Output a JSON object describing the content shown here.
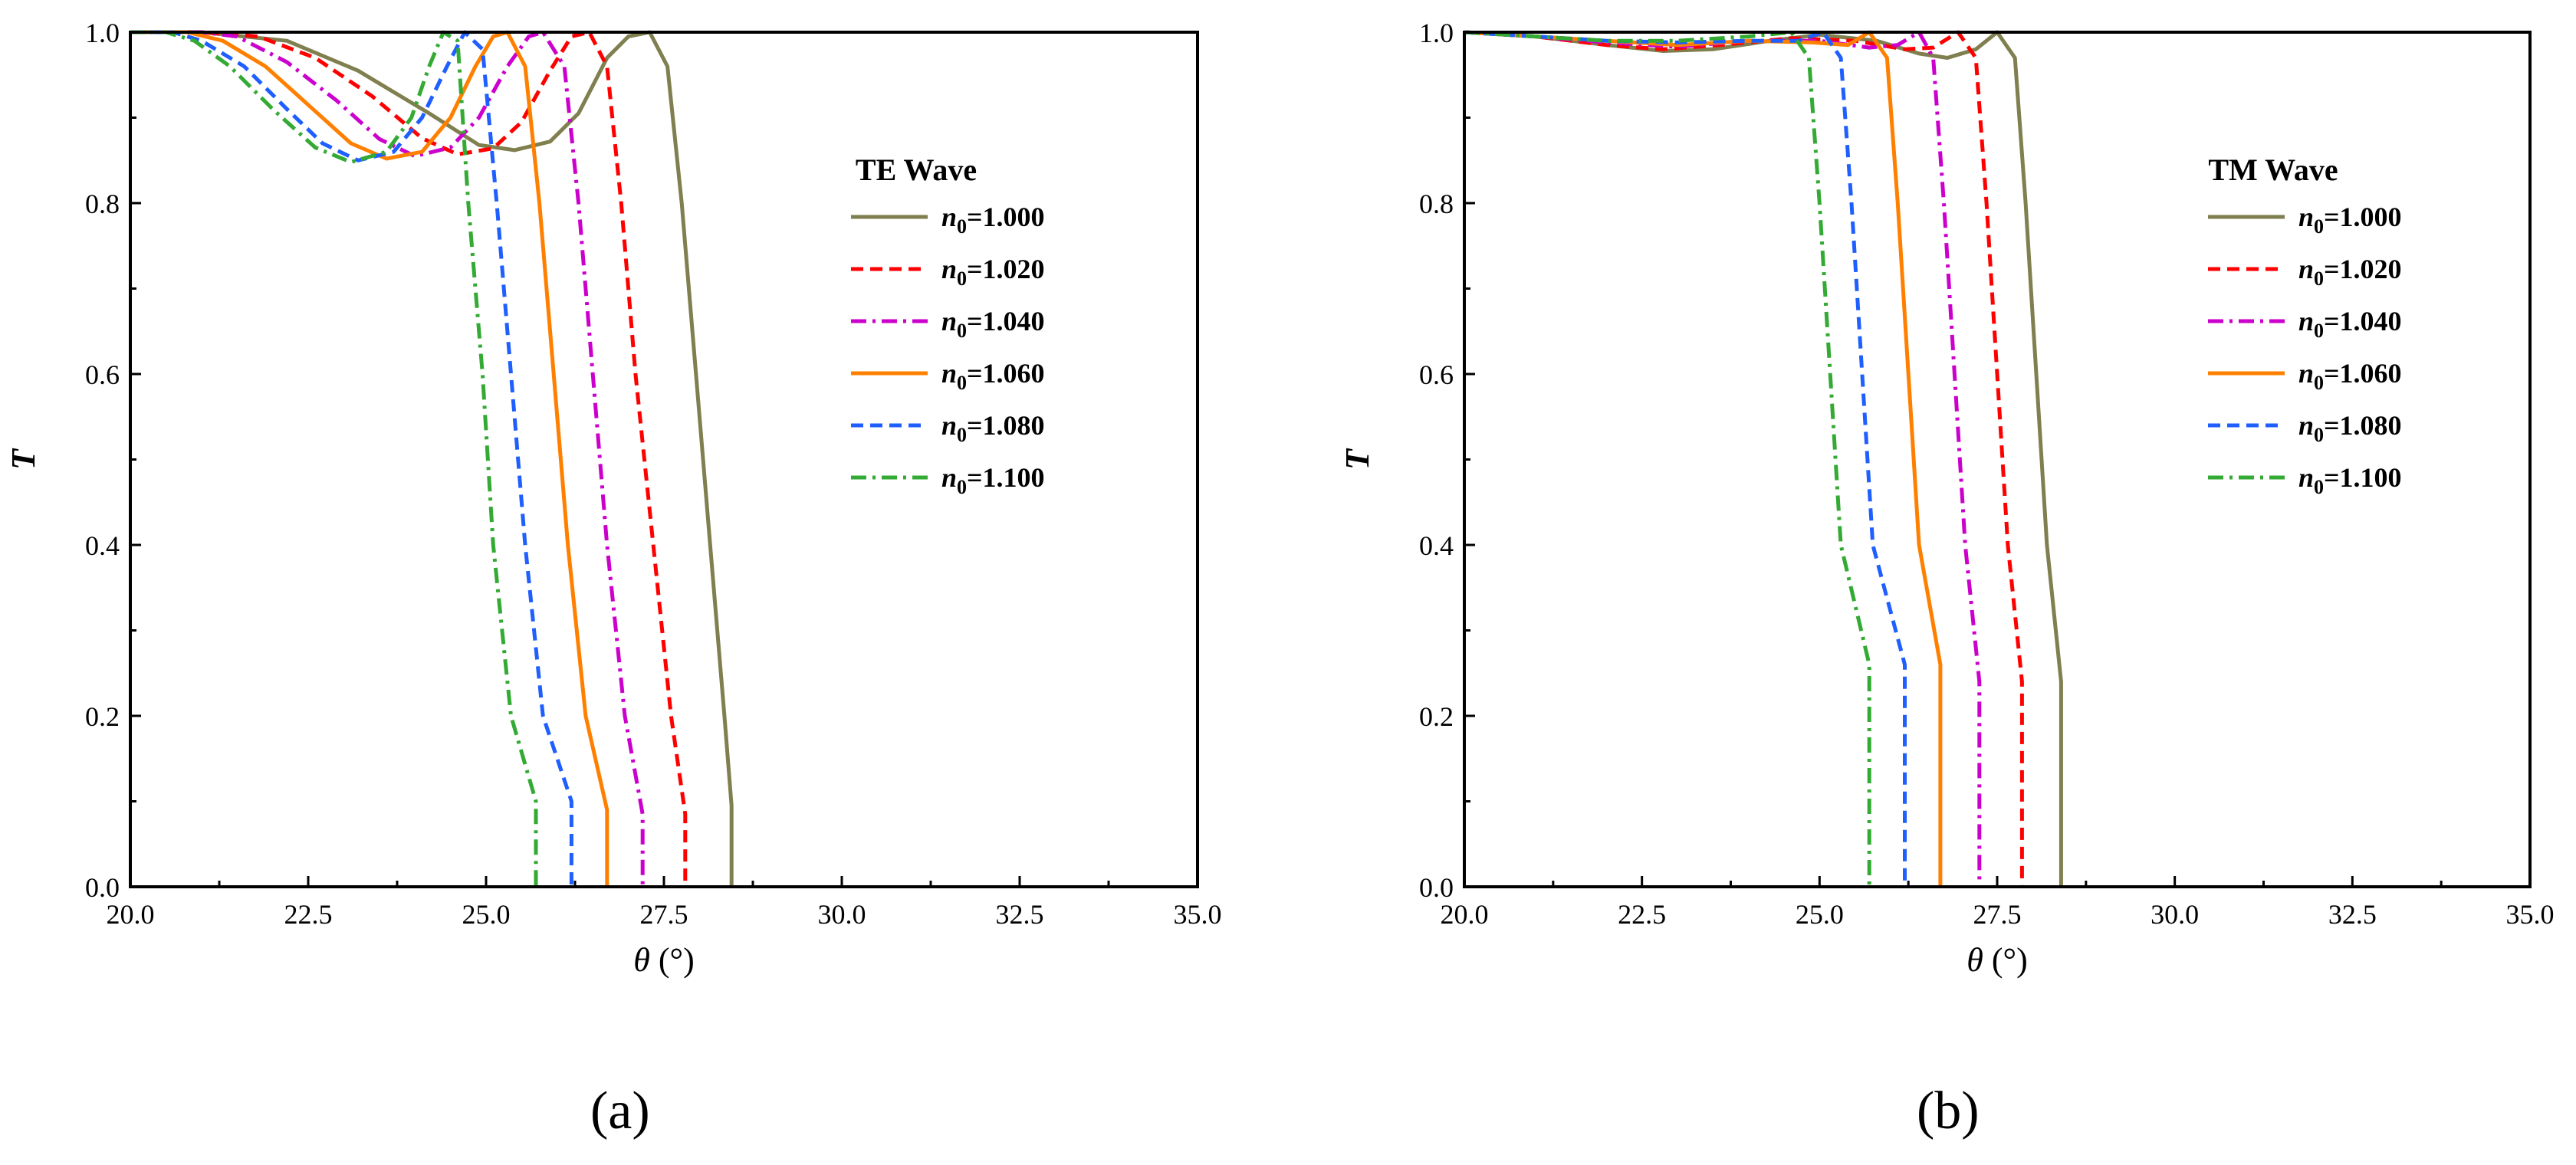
{
  "chart_data": [
    {
      "type": "line",
      "panel_label": "(a)",
      "legend_title": "TE Wave",
      "legend_position": "right",
      "xlabel_symbol": "θ",
      "xlabel_unit": "(°)",
      "ylabel": "T",
      "xlim": [
        20.0,
        35.0
      ],
      "ylim": [
        0.0,
        1.0
      ],
      "xticks": [
        "20.0",
        "22.5",
        "25.0",
        "27.5",
        "30.0",
        "32.5",
        "35.0"
      ],
      "yticks": [
        "0.0",
        "0.2",
        "0.4",
        "0.6",
        "0.8",
        "1.0"
      ],
      "grid": false,
      "series": [
        {
          "name": "n0=1.000",
          "label_base": "n",
          "label_sub": "0",
          "label_rest": "=1.000",
          "color": "#7f7f4f",
          "dash": "solid",
          "points": [
            [
              20,
              1
            ],
            [
              21,
              1
            ],
            [
              22.2,
              0.99
            ],
            [
              23.2,
              0.955
            ],
            [
              24.2,
              0.905
            ],
            [
              24.9,
              0.868
            ],
            [
              25.4,
              0.862
            ],
            [
              25.9,
              0.872
            ],
            [
              26.3,
              0.905
            ],
            [
              26.7,
              0.97
            ],
            [
              27.0,
              0.995
            ],
            [
              27.3,
              1.0
            ],
            [
              27.55,
              0.96
            ],
            [
              27.75,
              0.8
            ],
            [
              27.95,
              0.6
            ],
            [
              28.15,
              0.4
            ],
            [
              28.35,
              0.2
            ],
            [
              28.45,
              0.095
            ],
            [
              28.45,
              0
            ]
          ]
        },
        {
          "name": "n0=1.020",
          "label_base": "n",
          "label_sub": "0",
          "label_rest": "=1.020",
          "color": "#ff0000",
          "dash": "dashed",
          "points": [
            [
              20,
              1
            ],
            [
              21,
              1
            ],
            [
              21.8,
              0.995
            ],
            [
              22.6,
              0.97
            ],
            [
              23.4,
              0.925
            ],
            [
              24.1,
              0.876
            ],
            [
              24.6,
              0.857
            ],
            [
              25.1,
              0.864
            ],
            [
              25.5,
              0.895
            ],
            [
              25.9,
              0.955
            ],
            [
              26.2,
              0.995
            ],
            [
              26.45,
              1.0
            ],
            [
              26.7,
              0.96
            ],
            [
              26.9,
              0.8
            ],
            [
              27.1,
              0.6
            ],
            [
              27.35,
              0.4
            ],
            [
              27.6,
              0.2
            ],
            [
              27.8,
              0.085
            ],
            [
              27.8,
              0
            ]
          ]
        },
        {
          "name": "n0=1.040",
          "label_base": "n",
          "label_sub": "0",
          "label_rest": "=1.040",
          "color": "#cc00cc",
          "dash": "dashdot",
          "points": [
            [
              20,
              1
            ],
            [
              21,
              1
            ],
            [
              21.5,
              0.995
            ],
            [
              22.2,
              0.965
            ],
            [
              22.9,
              0.92
            ],
            [
              23.5,
              0.875
            ],
            [
              24.0,
              0.855
            ],
            [
              24.5,
              0.865
            ],
            [
              24.9,
              0.9
            ],
            [
              25.3,
              0.96
            ],
            [
              25.6,
              0.995
            ],
            [
              25.8,
              1.0
            ],
            [
              26.1,
              0.96
            ],
            [
              26.3,
              0.8
            ],
            [
              26.5,
              0.6
            ],
            [
              26.7,
              0.4
            ],
            [
              26.95,
              0.2
            ],
            [
              27.2,
              0.085
            ],
            [
              27.2,
              0
            ]
          ]
        },
        {
          "name": "n0=1.060",
          "label_base": "n",
          "label_sub": "0",
          "label_rest": "=1.060",
          "color": "#ff8000",
          "dash": "solid",
          "points": [
            [
              20,
              1
            ],
            [
              20.8,
              1
            ],
            [
              21.3,
              0.99
            ],
            [
              21.9,
              0.96
            ],
            [
              22.5,
              0.915
            ],
            [
              23.1,
              0.87
            ],
            [
              23.6,
              0.852
            ],
            [
              24.1,
              0.86
            ],
            [
              24.5,
              0.9
            ],
            [
              24.85,
              0.96
            ],
            [
              25.1,
              0.995
            ],
            [
              25.3,
              1.0
            ],
            [
              25.55,
              0.96
            ],
            [
              25.75,
              0.8
            ],
            [
              25.95,
              0.6
            ],
            [
              26.15,
              0.4
            ],
            [
              26.4,
              0.2
            ],
            [
              26.7,
              0.09
            ],
            [
              26.7,
              0
            ]
          ]
        },
        {
          "name": "n0=1.080",
          "label_base": "n",
          "label_sub": "0",
          "label_rest": "=1.080",
          "color": "#1f5fff",
          "dash": "dashed",
          "points": [
            [
              20,
              1
            ],
            [
              20.6,
              1
            ],
            [
              21.0,
              0.99
            ],
            [
              21.6,
              0.96
            ],
            [
              22.2,
              0.91
            ],
            [
              22.7,
              0.87
            ],
            [
              23.2,
              0.85
            ],
            [
              23.7,
              0.86
            ],
            [
              24.1,
              0.9
            ],
            [
              24.45,
              0.96
            ],
            [
              24.7,
              1.0
            ],
            [
              24.95,
              0.98
            ],
            [
              25.15,
              0.8
            ],
            [
              25.35,
              0.6
            ],
            [
              25.55,
              0.4
            ],
            [
              25.8,
              0.2
            ],
            [
              26.2,
              0.1
            ],
            [
              26.2,
              0
            ]
          ]
        },
        {
          "name": "n0=1.100",
          "label_base": "n",
          "label_sub": "0",
          "label_rest": "=1.100",
          "color": "#33aa33",
          "dash": "dashdot",
          "points": [
            [
              20,
              1
            ],
            [
              20.5,
              1
            ],
            [
              20.9,
              0.99
            ],
            [
              21.4,
              0.96
            ],
            [
              22.0,
              0.91
            ],
            [
              22.6,
              0.865
            ],
            [
              23.1,
              0.848
            ],
            [
              23.6,
              0.86
            ],
            [
              23.95,
              0.9
            ],
            [
              24.2,
              0.96
            ],
            [
              24.4,
              1.0
            ],
            [
              24.6,
              0.99
            ],
            [
              24.75,
              0.8
            ],
            [
              24.95,
              0.6
            ],
            [
              25.1,
              0.4
            ],
            [
              25.35,
              0.2
            ],
            [
              25.7,
              0.1
            ],
            [
              25.7,
              0
            ]
          ]
        }
      ]
    },
    {
      "type": "line",
      "panel_label": "(b)",
      "legend_title": "TM Wave",
      "legend_position": "right",
      "xlabel_symbol": "θ",
      "xlabel_unit": "(°)",
      "ylabel": "T",
      "xlim": [
        20.0,
        35.0
      ],
      "ylim": [
        0.0,
        1.0
      ],
      "xticks": [
        "20.0",
        "22.5",
        "25.0",
        "27.5",
        "30.0",
        "32.5",
        "35.0"
      ],
      "yticks": [
        "0.0",
        "0.2",
        "0.4",
        "0.6",
        "0.8",
        "1.0"
      ],
      "grid": false,
      "series": [
        {
          "name": "n0=1.000",
          "label_base": "n",
          "label_sub": "0",
          "label_rest": "=1.000",
          "color": "#7f7f4f",
          "dash": "solid",
          "points": [
            [
              20,
              1
            ],
            [
              21,
              0.995
            ],
            [
              22,
              0.985
            ],
            [
              22.8,
              0.978
            ],
            [
              23.5,
              0.98
            ],
            [
              24.3,
              0.99
            ],
            [
              25,
              0.997
            ],
            [
              25.8,
              0.99
            ],
            [
              26.4,
              0.975
            ],
            [
              26.8,
              0.97
            ],
            [
              27.2,
              0.98
            ],
            [
              27.5,
              1.0
            ],
            [
              27.75,
              0.97
            ],
            [
              27.9,
              0.8
            ],
            [
              28.05,
              0.6
            ],
            [
              28.2,
              0.4
            ],
            [
              28.4,
              0.24
            ],
            [
              28.4,
              0
            ]
          ]
        },
        {
          "name": "n0=1.020",
          "label_base": "n",
          "label_sub": "0",
          "label_rest": "=1.020",
          "color": "#ff0000",
          "dash": "dashed",
          "points": [
            [
              20,
              1
            ],
            [
              21,
              0.995
            ],
            [
              22,
              0.985
            ],
            [
              22.8,
              0.98
            ],
            [
              23.6,
              0.985
            ],
            [
              24.6,
              0.993
            ],
            [
              25.5,
              0.99
            ],
            [
              26.2,
              0.98
            ],
            [
              26.6,
              0.982
            ],
            [
              26.95,
              1.0
            ],
            [
              27.2,
              0.97
            ],
            [
              27.35,
              0.8
            ],
            [
              27.5,
              0.6
            ],
            [
              27.65,
              0.4
            ],
            [
              27.85,
              0.24
            ],
            [
              27.85,
              0
            ]
          ]
        },
        {
          "name": "n0=1.040",
          "label_base": "n",
          "label_sub": "0",
          "label_rest": "=1.040",
          "color": "#cc00cc",
          "dash": "dashdot",
          "points": [
            [
              20,
              1
            ],
            [
              21,
              0.995
            ],
            [
              22,
              0.988
            ],
            [
              23,
              0.983
            ],
            [
              24,
              0.99
            ],
            [
              25,
              0.99
            ],
            [
              25.7,
              0.982
            ],
            [
              26.1,
              0.985
            ],
            [
              26.4,
              1.0
            ],
            [
              26.6,
              0.97
            ],
            [
              26.75,
              0.8
            ],
            [
              26.9,
              0.6
            ],
            [
              27.05,
              0.4
            ],
            [
              27.25,
              0.24
            ],
            [
              27.25,
              0
            ]
          ]
        },
        {
          "name": "n0=1.060",
          "label_base": "n",
          "label_sub": "0",
          "label_rest": "=1.060",
          "color": "#ff8000",
          "dash": "solid",
          "points": [
            [
              20,
              1
            ],
            [
              21,
              0.995
            ],
            [
              22,
              0.99
            ],
            [
              23,
              0.985
            ],
            [
              24,
              0.99
            ],
            [
              24.9,
              0.988
            ],
            [
              25.4,
              0.985
            ],
            [
              25.7,
              1.0
            ],
            [
              25.95,
              0.97
            ],
            [
              26.1,
              0.8
            ],
            [
              26.25,
              0.6
            ],
            [
              26.4,
              0.4
            ],
            [
              26.7,
              0.26
            ],
            [
              26.7,
              0
            ]
          ]
        },
        {
          "name": "n0=1.080",
          "label_base": "n",
          "label_sub": "0",
          "label_rest": "=1.080",
          "color": "#1f5fff",
          "dash": "dashed",
          "points": [
            [
              20,
              1
            ],
            [
              21,
              0.995
            ],
            [
              22,
              0.99
            ],
            [
              23,
              0.988
            ],
            [
              24,
              0.99
            ],
            [
              24.7,
              0.99
            ],
            [
              25.05,
              1.0
            ],
            [
              25.3,
              0.97
            ],
            [
              25.45,
              0.8
            ],
            [
              25.6,
              0.6
            ],
            [
              25.75,
              0.4
            ],
            [
              26.2,
              0.26
            ],
            [
              26.2,
              0
            ]
          ]
        },
        {
          "name": "n0=1.100",
          "label_base": "n",
          "label_sub": "0",
          "label_rest": "=1.100",
          "color": "#33aa33",
          "dash": "dashdot",
          "points": [
            [
              20,
              1
            ],
            [
              21,
              0.995
            ],
            [
              22,
              0.99
            ],
            [
              23,
              0.99
            ],
            [
              24,
              0.995
            ],
            [
              24.6,
              1.0
            ],
            [
              24.85,
              0.97
            ],
            [
              25.0,
              0.8
            ],
            [
              25.15,
              0.6
            ],
            [
              25.3,
              0.4
            ],
            [
              25.7,
              0.26
            ],
            [
              25.7,
              0
            ]
          ]
        }
      ]
    }
  ]
}
